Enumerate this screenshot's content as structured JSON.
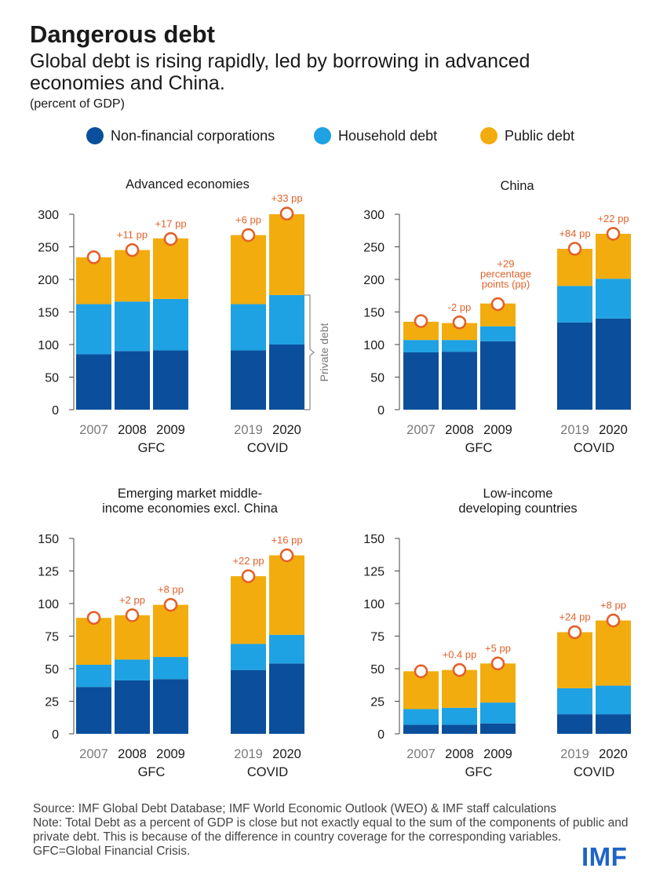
{
  "header": {
    "title": "Dangerous debt",
    "subtitle": "Global debt is rising rapidly, led by borrowing in advanced economies and China.",
    "units": "(percent of GDP)"
  },
  "legend": [
    {
      "label": "Non-financial corporations",
      "color": "#0b4f9c"
    },
    {
      "label": "Household debt",
      "color": "#1ea2e3"
    },
    {
      "label": "Public debt",
      "color": "#f2ac0d"
    }
  ],
  "colors": {
    "nfc": "#0b4f9c",
    "household": "#1ea2e3",
    "public": "#f2ac0d",
    "marker": "#e2612b",
    "annotation": "#e2612b",
    "axis": "#444444"
  },
  "chart_data": [
    {
      "type": "bar",
      "stacked": true,
      "title": "Advanced economies",
      "categories": [
        "2007",
        "2008",
        "2009",
        "2019",
        "2020"
      ],
      "group_labels": [
        "GFC",
        "COVID"
      ],
      "ylim": [
        0,
        300
      ],
      "yticks": [
        0,
        50,
        100,
        150,
        200,
        250,
        300
      ],
      "series": [
        {
          "name": "Non-financial corporations",
          "values": [
            85,
            90,
            91,
            91,
            100
          ]
        },
        {
          "name": "Household debt",
          "values": [
            77,
            76,
            79,
            71,
            76
          ]
        },
        {
          "name": "Public debt",
          "values": [
            72,
            79,
            93,
            106,
            124
          ]
        }
      ],
      "total_debt": [
        234,
        245,
        262,
        268,
        301
      ],
      "annotations": [
        "",
        "+11 pp",
        "+17 pp",
        "+6 pp",
        "+33 pp"
      ],
      "bracket_label": "Private debt"
    },
    {
      "type": "bar",
      "stacked": true,
      "title": "China",
      "categories": [
        "2007",
        "2008",
        "2009",
        "2019",
        "2020"
      ],
      "group_labels": [
        "GFC",
        "COVID"
      ],
      "ylim": [
        0,
        300
      ],
      "yticks": [
        0,
        50,
        100,
        150,
        200,
        250,
        300
      ],
      "series": [
        {
          "name": "Non-financial corporations",
          "values": [
            88,
            89,
            105,
            134,
            140
          ]
        },
        {
          "name": "Household debt",
          "values": [
            19,
            18,
            23,
            56,
            61
          ]
        },
        {
          "name": "Public debt",
          "values": [
            28,
            26,
            35,
            57,
            69
          ]
        }
      ],
      "total_debt": [
        136,
        134,
        162,
        247,
        270
      ],
      "annotations": [
        "",
        "-2 pp",
        "+29 percentage points (pp)",
        "+84 pp",
        "+22 pp"
      ]
    },
    {
      "type": "bar",
      "stacked": true,
      "title": "Emerging market middle-income economies excl. China",
      "categories": [
        "2007",
        "2008",
        "2009",
        "2019",
        "2020"
      ],
      "group_labels": [
        "GFC",
        "COVID"
      ],
      "ylim": [
        0,
        150
      ],
      "yticks": [
        0,
        25,
        50,
        75,
        100,
        125,
        150
      ],
      "series": [
        {
          "name": "Non-financial corporations",
          "values": [
            36,
            41,
            42,
            49,
            54
          ]
        },
        {
          "name": "Household debt",
          "values": [
            17,
            16,
            17,
            20,
            22
          ]
        },
        {
          "name": "Public debt",
          "values": [
            36,
            34,
            40,
            52,
            61
          ]
        }
      ],
      "total_debt": [
        89,
        91,
        99,
        121,
        137
      ],
      "annotations": [
        "",
        "+2 pp",
        "+8 pp",
        "+22 pp",
        "+16 pp"
      ]
    },
    {
      "type": "bar",
      "stacked": true,
      "title": "Low-income developing countries",
      "categories": [
        "2007",
        "2008",
        "2009",
        "2019",
        "2020"
      ],
      "group_labels": [
        "GFC",
        "COVID"
      ],
      "ylim": [
        0,
        150
      ],
      "yticks": [
        0,
        25,
        50,
        75,
        100,
        125,
        150
      ],
      "series": [
        {
          "name": "Non-financial corporations",
          "values": [
            7,
            7,
            8,
            15,
            15
          ]
        },
        {
          "name": "Household debt",
          "values": [
            12,
            13,
            16,
            20,
            22
          ]
        },
        {
          "name": "Public debt",
          "values": [
            29,
            29,
            30,
            43,
            50
          ]
        }
      ],
      "total_debt": [
        48,
        49,
        54,
        78,
        87
      ],
      "annotations": [
        "",
        "+0.4 pp",
        "+5 pp",
        "+24 pp",
        "+8 pp"
      ]
    }
  ],
  "footer": {
    "source": "Source: IMF Global Debt Database; IMF World Economic Outlook (WEO) & IMF staff calculations",
    "note": "Note: Total Debt as a percent of GDP is close but not exactly equal to the sum of the components of public and private debt. This is because of the difference in country coverage for the corresponding variables. GFC=Global Financial Crisis."
  },
  "logo": "IMF"
}
